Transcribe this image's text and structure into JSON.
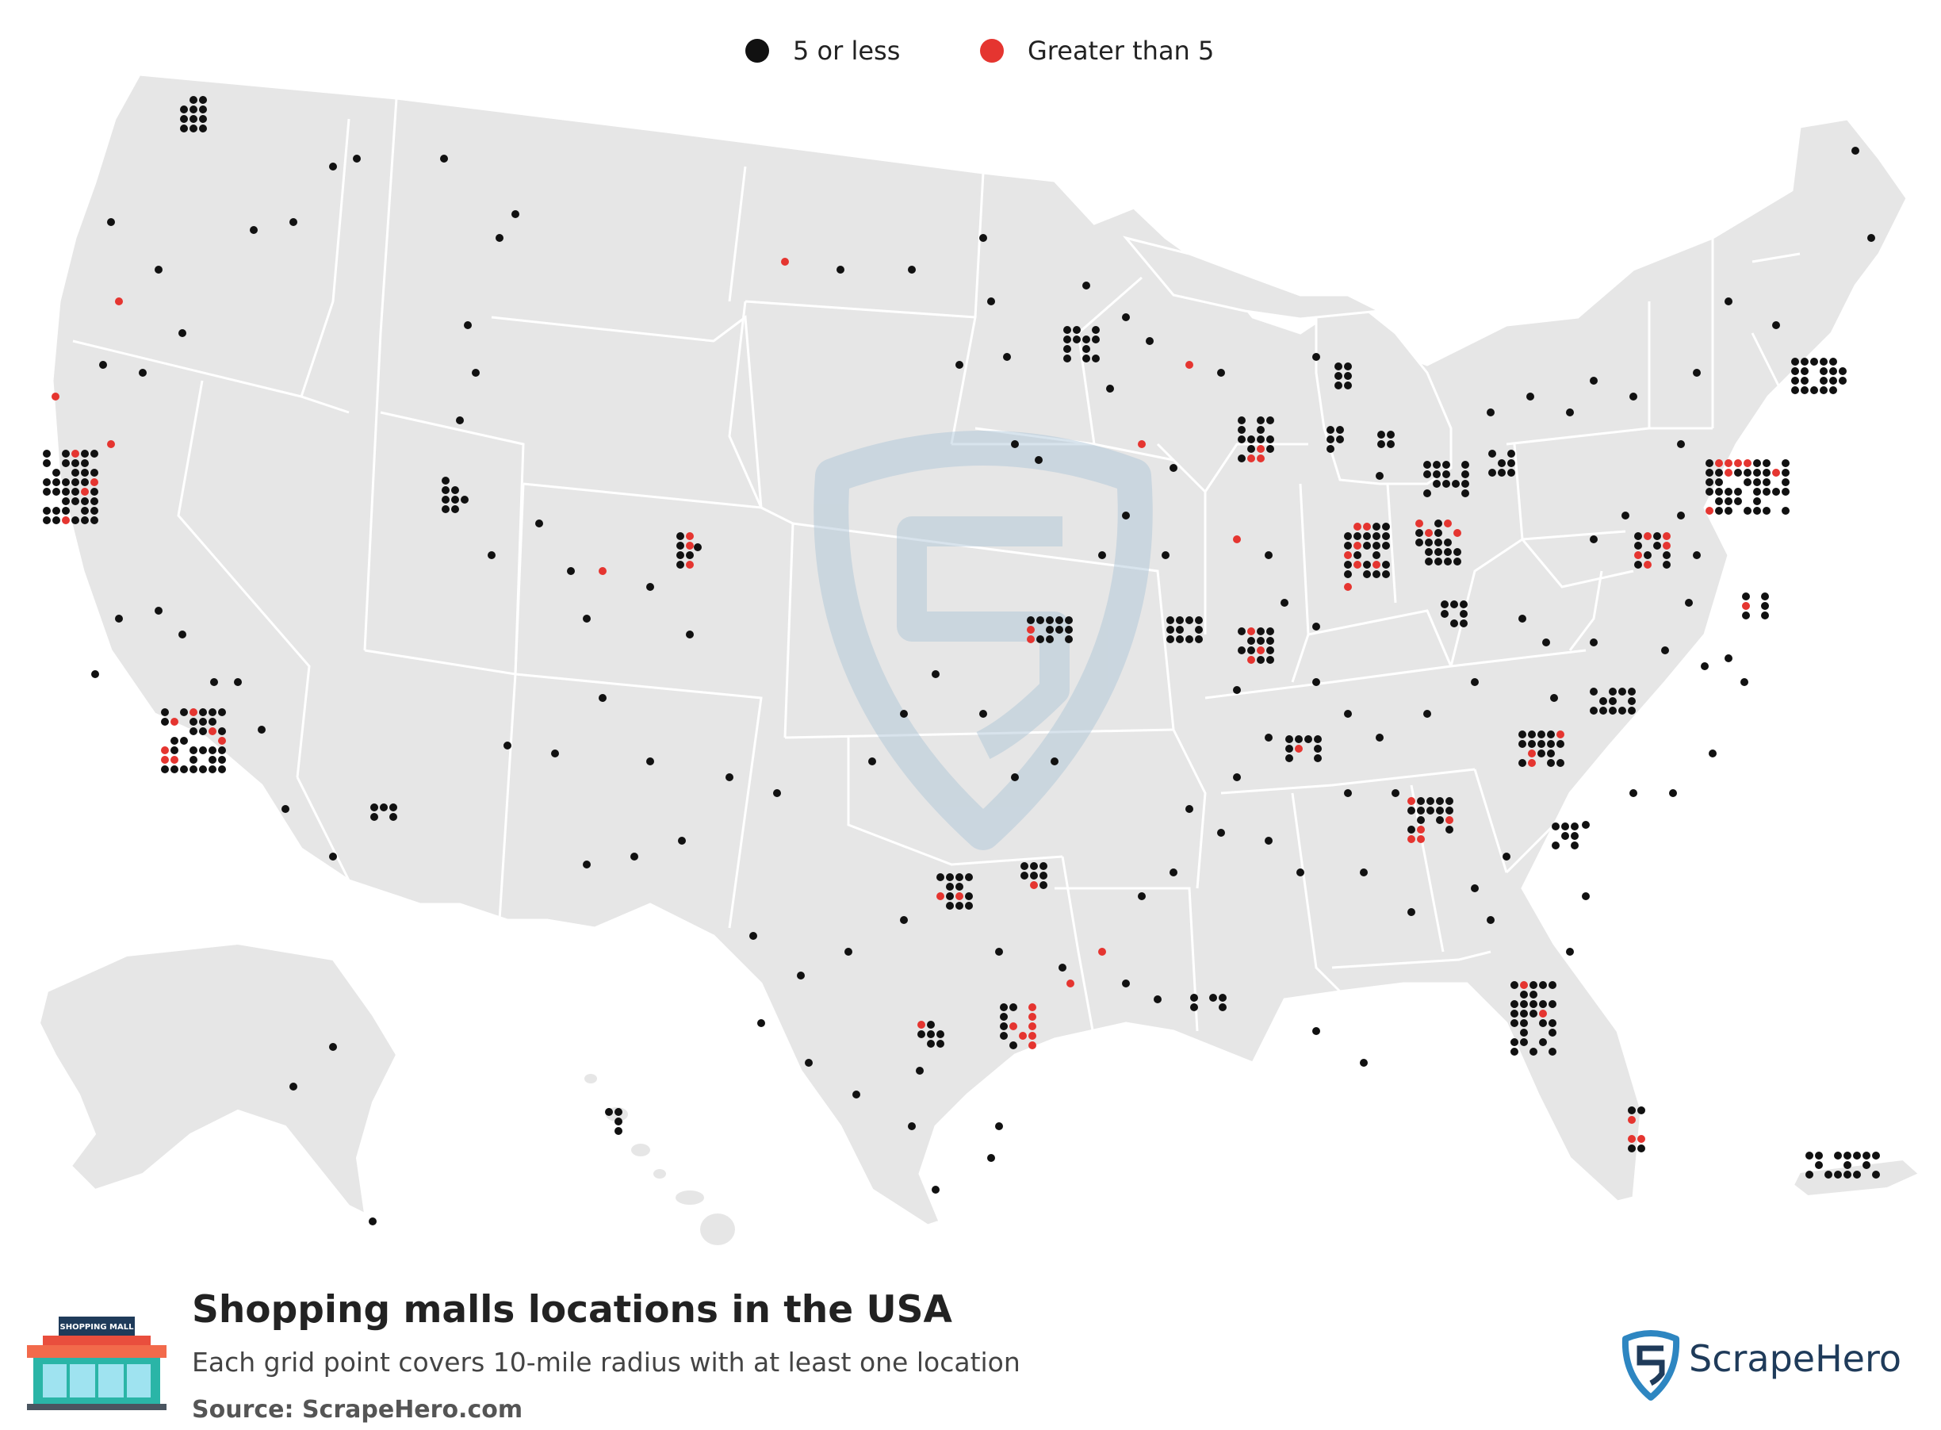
{
  "legend": {
    "small_label": "5 or less",
    "large_label": "Greater than 5",
    "small_color": "#111111",
    "large_color": "#e53530"
  },
  "footer": {
    "title": "Shopping malls locations in the USA",
    "subtitle": "Each grid point covers 10-mile radius with at least one location",
    "source": "Source: ScrapeHero.com",
    "icon_sign": "SHOPPING MALL",
    "brand": "ScrapeHero"
  },
  "colors": {
    "land": "#e6e6e6",
    "border": "#ffffff",
    "watermark": "#a9c3d6",
    "brand_blue": "#2e86c1",
    "brand_dark": "#1f3b5a"
  }
}
